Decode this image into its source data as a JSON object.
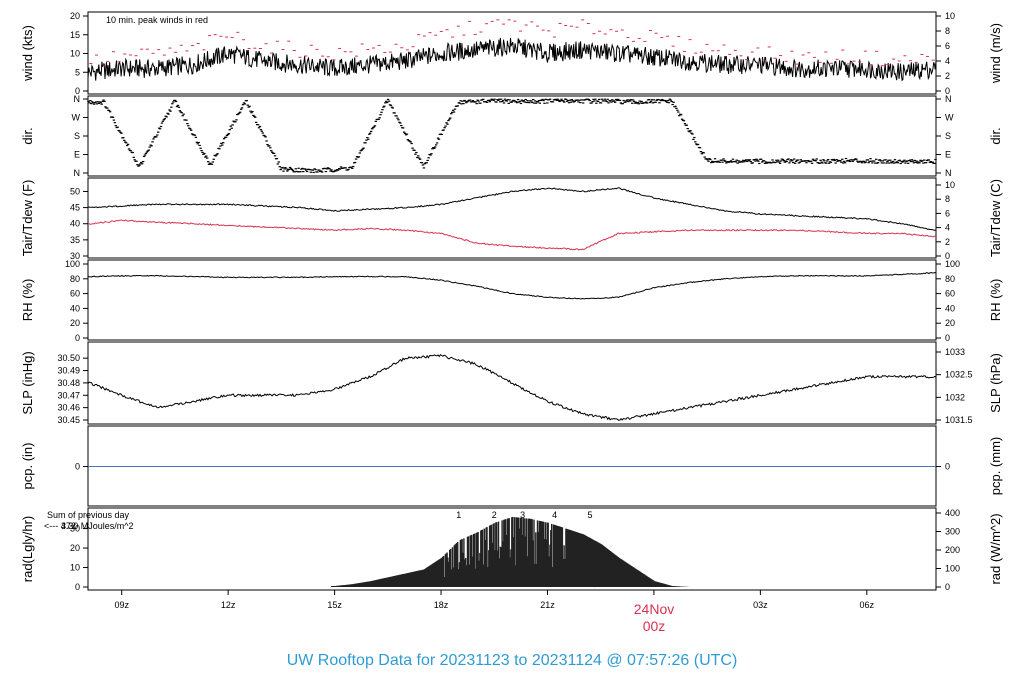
{
  "title": "UW Rooftop Data for 20231123  to  20231124 @ 07:57:26  (UTC)",
  "colors": {
    "peak": "#d9314f",
    "dew": "#d9314f",
    "pcp": "#4a6fb5",
    "title": "#2f9bd5",
    "rad_note": "#9933cc",
    "line": "#000000"
  },
  "x_axis": {
    "ticks": [
      {
        "label": "09z",
        "hour": 9
      },
      {
        "label": "12z",
        "hour": 12
      },
      {
        "label": "15z",
        "hour": 15
      },
      {
        "label": "18z",
        "hour": 18
      },
      {
        "label": "21z",
        "hour": 21
      },
      {
        "label": "03z",
        "hour": 27
      },
      {
        "label": "06z",
        "hour": 30
      }
    ],
    "midnight": {
      "date": "24Nov",
      "time": "00z",
      "hour": 24
    },
    "range_hours": [
      8.05,
      31.95
    ]
  },
  "chart_data": [
    {
      "type": "line",
      "id": "wind",
      "ylabel": "wind (kts)",
      "ylabel_right": "wind (m/s)",
      "ylim": [
        0,
        20
      ],
      "yticks": [
        0,
        5,
        10,
        15,
        20
      ],
      "yticks_right": [
        "0",
        "2",
        "4",
        "6",
        "8",
        "10"
      ],
      "annotation": "10 min. peak winds in red",
      "series": [
        {
          "name": "wind",
          "x": [
            8.1,
            9,
            10,
            11,
            12,
            13,
            14,
            15,
            16,
            17,
            18,
            19,
            20,
            21,
            22,
            23,
            24,
            25,
            26,
            27,
            28,
            29,
            30,
            31,
            31.9
          ],
          "y": [
            5,
            6,
            6,
            7,
            10,
            8,
            7,
            6,
            7,
            8,
            10,
            11,
            12,
            10,
            11,
            10,
            9,
            8,
            7,
            7,
            6,
            6,
            6,
            5,
            6
          ]
        },
        {
          "name": "10 min. peak winds",
          "x": [
            8.1,
            9,
            10,
            11,
            12,
            13,
            14,
            15,
            16,
            17,
            18,
            19,
            20,
            21,
            22,
            23,
            24,
            25,
            26,
            27,
            28,
            29,
            30,
            31,
            31.9
          ],
          "y": [
            8,
            9,
            10,
            11,
            15,
            12,
            11,
            10,
            11,
            12,
            15,
            17,
            18,
            16,
            17,
            16,
            14,
            12,
            11,
            10,
            9,
            9,
            9,
            8,
            9
          ]
        }
      ]
    },
    {
      "type": "scatter",
      "id": "dir",
      "ylabel": "dir.",
      "ylabel_right": "dir.",
      "yticks_labels": [
        "N",
        "E",
        "S",
        "W",
        "N"
      ],
      "yticks_labels_right": [
        "N",
        "E",
        "S",
        "W",
        "N"
      ],
      "ylim": [
        0,
        360
      ],
      "series": [
        {
          "name": "dir",
          "x": [
            8.5,
            9.5,
            10.5,
            11.5,
            12.5,
            13.5,
            14.5,
            15.5,
            16.5,
            17.5,
            18.5,
            19.5,
            20.5,
            21.5,
            22.5,
            23.5,
            24.5,
            25.5,
            26.5,
            27.5,
            28.5,
            29.5,
            30.5,
            31.5
          ],
          "y": [
            345,
            30,
            352,
            40,
            350,
            20,
            10,
            25,
            355,
            30,
            345,
            350,
            348,
            352,
            350,
            345,
            350,
            60,
            55,
            58,
            57,
            60,
            58,
            55
          ]
        }
      ]
    },
    {
      "type": "line",
      "id": "temp",
      "ylabel": "Tair/Tdew (F)",
      "ylabel_right": "Tair/Tdew (C)",
      "ylim": [
        30,
        52
      ],
      "yticks": [
        30,
        35,
        40,
        45,
        50
      ],
      "yticks_right": [
        "0",
        "2",
        "4",
        "6",
        "8",
        "10"
      ],
      "series": [
        {
          "name": "Tair",
          "x": [
            8.1,
            9,
            10,
            11,
            12,
            13,
            14,
            15,
            16,
            17,
            18,
            19,
            20,
            21,
            22,
            23,
            24,
            25,
            26,
            27,
            28,
            29,
            30,
            31,
            31.9
          ],
          "y": [
            45,
            45.5,
            46,
            46,
            46,
            45.5,
            45,
            44,
            44.5,
            45,
            46,
            48,
            50,
            51,
            50,
            51,
            48,
            46,
            44,
            43,
            42.5,
            42,
            41.5,
            40,
            38
          ]
        },
        {
          "name": "Tdew",
          "x": [
            8.1,
            9,
            10,
            11,
            12,
            13,
            14,
            15,
            16,
            17,
            18,
            19,
            20,
            21,
            22,
            23,
            24,
            25,
            26,
            27,
            28,
            29,
            30,
            31,
            31.9
          ],
          "y": [
            40,
            41,
            40.5,
            40,
            39.5,
            39,
            38.5,
            38,
            38.5,
            38,
            37,
            34,
            33,
            32.5,
            32,
            37,
            37.5,
            38,
            38,
            38,
            38,
            37.5,
            37,
            37,
            36
          ]
        }
      ]
    },
    {
      "type": "line",
      "id": "rh",
      "ylabel": "RH (%)",
      "ylabel_right": "RH (%)",
      "ylim": [
        0,
        100
      ],
      "yticks": [
        0,
        20,
        40,
        60,
        80,
        100
      ],
      "yticks_right": [
        "0",
        "20",
        "40",
        "60",
        "80",
        "100"
      ],
      "series": [
        {
          "name": "RH",
          "x": [
            8.1,
            9,
            10,
            11,
            12,
            13,
            14,
            15,
            16,
            17,
            18,
            19,
            20,
            21,
            22,
            23,
            24,
            25,
            26,
            27,
            28,
            29,
            30,
            31,
            31.9
          ],
          "y": [
            83,
            84,
            84,
            83,
            82,
            82,
            82,
            83,
            83,
            83,
            78,
            70,
            60,
            55,
            53,
            55,
            68,
            75,
            80,
            83,
            84,
            84,
            84,
            86,
            88
          ]
        }
      ]
    },
    {
      "type": "line",
      "id": "slp",
      "ylabel": "SLP (inHg)",
      "ylabel_right": "SLP (hPa)",
      "ylim": [
        30.45,
        30.505
      ],
      "yticks": [
        30.45,
        30.46,
        30.47,
        30.48,
        30.49,
        30.5
      ],
      "yticks_labels": [
        "30.45",
        "30.46",
        "30.47",
        "30.48",
        "30.49",
        "30.50"
      ],
      "yticks_right": [
        "1031.5",
        "1032",
        "1032.5",
        "1033"
      ],
      "series": [
        {
          "name": "SLP",
          "x": [
            8.1,
            9,
            10,
            11,
            12,
            13,
            14,
            15,
            16,
            17,
            18,
            19,
            20,
            21,
            22,
            23,
            24,
            25,
            26,
            27,
            28,
            29,
            30,
            31,
            31.9
          ],
          "y": [
            30.48,
            30.47,
            30.46,
            30.465,
            30.47,
            30.47,
            30.47,
            30.475,
            30.485,
            30.5,
            30.502,
            30.495,
            30.48,
            30.465,
            30.455,
            30.45,
            30.455,
            30.46,
            30.465,
            30.47,
            30.475,
            30.48,
            30.485,
            30.485,
            30.485
          ]
        }
      ]
    },
    {
      "type": "line",
      "id": "pcp",
      "ylabel": "pcp. (in)",
      "ylabel_right": "pcp. (mm)",
      "ylim": [
        -1,
        1
      ],
      "yticks": [
        0
      ],
      "yticks_right": [
        "0"
      ],
      "series": [
        {
          "name": "pcp",
          "x": [
            8.1,
            31.9
          ],
          "y": [
            0,
            0
          ]
        }
      ]
    },
    {
      "type": "bar",
      "id": "rad",
      "ylabel": "rad(Lgly/hr)",
      "ylabel_right": "rad (W/m^2)",
      "ylim": [
        0,
        38
      ],
      "yticks": [
        0,
        10,
        20,
        30
      ],
      "yticks_right": [
        "0",
        "100",
        "200",
        "300",
        "400"
      ],
      "note_line1": "Sum of previous day",
      "note_line2": "<--- 4.30 MJoules/m^2",
      "note_value": "372",
      "markers": [
        "1",
        "2",
        "3",
        "4",
        "5"
      ],
      "marker_hours": [
        18.5,
        19.5,
        20.3,
        21.2,
        22.2
      ],
      "x": [
        15,
        15.5,
        16,
        16.5,
        17,
        17.5,
        18,
        18.5,
        19,
        19.5,
        20,
        20.5,
        21,
        21.5,
        22,
        22.5,
        23,
        23.5,
        24,
        24.5,
        25
      ],
      "values": [
        0.5,
        1.5,
        3,
        5,
        7,
        9,
        15,
        24,
        28,
        33,
        36,
        35,
        33,
        30,
        27,
        22,
        15,
        9,
        3,
        0.5,
        0
      ]
    }
  ]
}
